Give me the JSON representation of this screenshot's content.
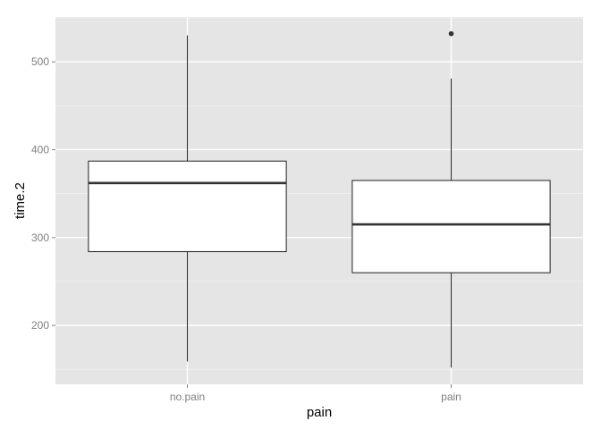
{
  "chart_data": {
    "type": "boxplot",
    "xlabel": "pain",
    "ylabel": "time.2",
    "categories": [
      "no.pain",
      "pain"
    ],
    "boxes": [
      {
        "category": "no.pain",
        "lower_whisker": 159,
        "q1": 284,
        "median": 362,
        "q3": 387,
        "upper_whisker": 530,
        "outliers": []
      },
      {
        "category": "pain",
        "lower_whisker": 152,
        "q1": 260,
        "median": 315,
        "q3": 365,
        "upper_whisker": 481,
        "outliers": [
          532
        ]
      }
    ],
    "y_ticks": [
      200,
      300,
      400,
      500
    ],
    "ylim": [
      133,
      551
    ],
    "grid": true,
    "colors": {
      "panel_bg": "#e5e5e5",
      "grid_major": "#ffffff",
      "grid_minor": "#f2f2f2",
      "box_fill": "#ffffff",
      "box_stroke": "#333333",
      "tick_text": "#7f7f7f",
      "title_text": "#000000"
    }
  }
}
